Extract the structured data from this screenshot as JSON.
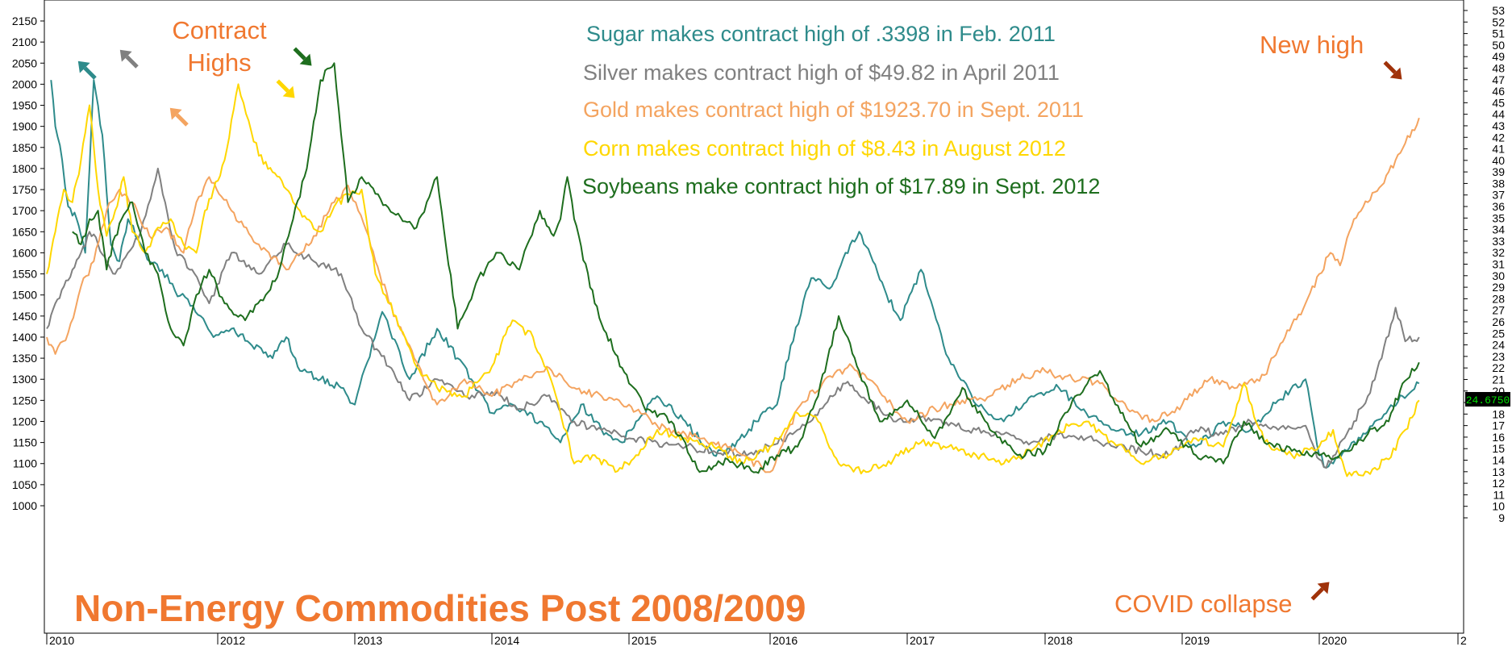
{
  "chart_data": {
    "type": "line",
    "title": "Non-Energy Commodities Post 2008/2009",
    "annotations": {
      "contract_highs_line1": "Contract",
      "contract_highs_line2": "Highs",
      "new_high": "New high",
      "covid": "COVID collapse",
      "sugar": "Sugar makes contract high of .3398 in Feb. 2011",
      "silver": "Silver makes contract high of $49.82 in April 2011",
      "gold": "Gold makes contract high of $1923.70 in Sept. 2011",
      "corn": "Corn makes contract high of $8.43 in August 2012",
      "soybeans": "Soybeans make contract high of $17.89 in Sept. 2012",
      "last_value": "24.6750"
    },
    "x_ticks": [
      "2010",
      "2012",
      "2013",
      "2014",
      "2015",
      "2016",
      "2017",
      "2018",
      "2019",
      "2020",
      "2"
    ],
    "left_axis": {
      "min": 950,
      "max": 2150,
      "ticks": [
        1000,
        1050,
        1100,
        1150,
        1200,
        1250,
        1300,
        1350,
        1400,
        1450,
        1500,
        1550,
        1600,
        1650,
        1700,
        1750,
        1800,
        1850,
        1900,
        1950,
        2000,
        2050,
        2100,
        2150
      ]
    },
    "right_axis": {
      "min": 8,
      "max": 53,
      "ticks": [
        9,
        10,
        11,
        12,
        13,
        14,
        15,
        16,
        17,
        18,
        19,
        20,
        21,
        22,
        23,
        24,
        25,
        26,
        27,
        28,
        29,
        30,
        31,
        32,
        33,
        34,
        35,
        36,
        37,
        38,
        39,
        40,
        41,
        42,
        43,
        44,
        45,
        46,
        47,
        48,
        49,
        50,
        51,
        52,
        53
      ]
    },
    "x_range": [
      2010.0,
      2020.9
    ],
    "grid": false,
    "series": [
      {
        "name": "Sugar",
        "color": "#2e8b8b",
        "x": [
          2010.05,
          2010.1,
          2010.18,
          2010.25,
          2010.35,
          2010.45,
          2010.55,
          2010.65,
          2010.75,
          2010.85,
          2010.95,
          2011.1,
          2011.2,
          2011.35,
          2011.5,
          2011.65,
          2011.8,
          2011.95,
          2012.1,
          2012.25,
          2012.4,
          2012.5,
          2012.6,
          2012.75,
          2012.9,
          2013.0,
          2013.2,
          2013.4,
          2013.6,
          2013.75,
          2013.85,
          2014.0,
          2014.15,
          2014.35,
          2014.5,
          2014.65,
          2014.8,
          2014.95,
          2015.05,
          2015.2,
          2015.4,
          2015.6,
          2015.75,
          2015.9,
          2016.05,
          2016.15,
          2016.3,
          2016.45,
          2016.55,
          2016.65,
          2016.75,
          2016.85,
          2016.95,
          2017.1,
          2017.3,
          2017.5,
          2017.7,
          2017.9,
          2018.1,
          2018.3,
          2018.5,
          2018.7,
          2018.9,
          2019.1,
          2019.3,
          2019.5,
          2019.7,
          2019.9,
          2020.0,
          2020.05,
          2020.1,
          2020.2,
          2020.3,
          2020.4,
          2020.5,
          2020.6,
          2020.72
        ],
        "y": [
          2010,
          1900,
          1820,
          1710,
          1680,
          1600,
          2010,
          1880,
          1620,
          1580,
          1680,
          1620,
          1580,
          1560,
          1510,
          1490,
          1450,
          1400,
          1420,
          1380,
          1350,
          1400,
          1320,
          1300,
          1280,
          1240,
          1460,
          1300,
          1420,
          1350,
          1300,
          1220,
          1240,
          1200,
          1150,
          1240,
          1180,
          1150,
          1200,
          1260,
          1200,
          1120,
          1140,
          1200,
          1240,
          1380,
          1540,
          1520,
          1600,
          1650,
          1580,
          1500,
          1440,
          1560,
          1350,
          1240,
          1200,
          1260,
          1280,
          1220,
          1180,
          1170,
          1200,
          1140,
          1200,
          1180,
          1250,
          1300,
          1120,
          1090,
          1100,
          1130,
          1160,
          1200,
          1230,
          1260,
          1290
        ]
      },
      {
        "name": "Silver",
        "color": "#808080",
        "x": [
          2010.0,
          2010.1,
          2010.2,
          2010.3,
          2010.4,
          2010.5,
          2010.6,
          2010.7,
          2010.8,
          2010.95,
          2011.1,
          2011.3,
          2011.5,
          2011.7,
          2011.9,
          2012.1,
          2012.3,
          2012.5,
          2012.7,
          2012.9,
          2013.05,
          2013.25,
          2013.4,
          2013.6,
          2013.8,
          2014.0,
          2014.2,
          2014.4,
          2014.6,
          2014.8,
          2015.0,
          2015.2,
          2015.4,
          2015.6,
          2015.8,
          2016.0,
          2016.2,
          2016.4,
          2016.55,
          2016.7,
          2016.9,
          2017.1,
          2017.3,
          2017.5,
          2017.7,
          2017.9,
          2018.1,
          2018.3,
          2018.5,
          2018.7,
          2018.9,
          2019.1,
          2019.3,
          2019.5,
          2019.7,
          2019.9,
          2020.0,
          2020.05,
          2020.15,
          2020.25,
          2020.35,
          2020.45,
          2020.55,
          2020.62,
          2020.72
        ],
        "y": [
          1420,
          1480,
          1520,
          1560,
          1600,
          1650,
          1620,
          1580,
          1550,
          1600,
          1650,
          1800,
          1610,
          1560,
          1480,
          1600,
          1550,
          1620,
          1580,
          1550,
          1420,
          1330,
          1250,
          1300,
          1260,
          1270,
          1230,
          1260,
          1200,
          1180,
          1160,
          1150,
          1140,
          1130,
          1120,
          1140,
          1180,
          1240,
          1290,
          1250,
          1200,
          1210,
          1190,
          1180,
          1170,
          1150,
          1170,
          1160,
          1140,
          1130,
          1120,
          1180,
          1170,
          1200,
          1180,
          1190,
          1110,
          1090,
          1150,
          1200,
          1260,
          1350,
          1470,
          1390,
          1400
        ]
      },
      {
        "name": "Gold",
        "color": "#f4a460",
        "x": [
          2010.0,
          2010.1,
          2010.25,
          2010.4,
          2010.55,
          2010.7,
          2010.85,
          2011.0,
          2011.2,
          2011.4,
          2011.6,
          2011.75,
          2011.9,
          2012.1,
          2012.3,
          2012.5,
          2012.7,
          2012.85,
          2012.95,
          2013.1,
          2013.25,
          2013.4,
          2013.5,
          2013.6,
          2013.8,
          2014.0,
          2014.2,
          2014.4,
          2014.6,
          2014.8,
          2015.0,
          2015.2,
          2015.4,
          2015.6,
          2015.8,
          2016.0,
          2016.2,
          2016.4,
          2016.6,
          2016.8,
          2017.0,
          2017.2,
          2017.4,
          2017.6,
          2017.8,
          2018.0,
          2018.2,
          2018.4,
          2018.6,
          2018.8,
          2019.0,
          2019.2,
          2019.4,
          2019.6,
          2019.75,
          2019.9,
          2020.0,
          2020.08,
          2020.15,
          2020.25,
          2020.35,
          2020.45,
          2020.55,
          2020.62,
          2020.72
        ],
        "y": [
          1400,
          1360,
          1410,
          1520,
          1580,
          1700,
          1750,
          1720,
          1640,
          1660,
          1600,
          1720,
          1780,
          1700,
          1620,
          1560,
          1640,
          1720,
          1760,
          1640,
          1480,
          1380,
          1300,
          1240,
          1300,
          1260,
          1300,
          1330,
          1280,
          1260,
          1240,
          1190,
          1170,
          1150,
          1120,
          1080,
          1230,
          1300,
          1330,
          1270,
          1200,
          1230,
          1250,
          1260,
          1300,
          1320,
          1300,
          1290,
          1230,
          1200,
          1240,
          1300,
          1280,
          1310,
          1400,
          1480,
          1550,
          1600,
          1570,
          1680,
          1720,
          1760,
          1820,
          1860,
          1920
        ]
      },
      {
        "name": "Corn",
        "color": "#ffd700",
        "x": [
          2010.0,
          2010.1,
          2010.2,
          2010.3,
          2010.4,
          2010.5,
          2010.6,
          2010.7,
          2010.8,
          2010.9,
          2011.0,
          2011.15,
          2011.3,
          2011.45,
          2011.6,
          2011.75,
          2011.85,
          2011.95,
          2012.05,
          2012.15,
          2012.3,
          2012.45,
          2012.55,
          2012.65,
          2012.75,
          2012.85,
          2012.95,
          2013.05,
          2013.15,
          2013.3,
          2013.45,
          2013.6,
          2013.8,
          2014.0,
          2014.15,
          2014.3,
          2014.45,
          2014.6,
          2014.75,
          2014.9,
          2015.05,
          2015.2,
          2015.4,
          2015.6,
          2015.8,
          2016.0,
          2016.2,
          2016.35,
          2016.5,
          2016.7,
          2016.9,
          2017.1,
          2017.3,
          2017.5,
          2017.7,
          2017.9,
          2018.1,
          2018.3,
          2018.5,
          2018.7,
          2018.9,
          2019.1,
          2019.3,
          2019.45,
          2019.6,
          2019.8,
          2020.0,
          2020.1,
          2020.2,
          2020.35,
          2020.5,
          2020.62,
          2020.72
        ],
        "y": [
          1550,
          1650,
          1750,
          1720,
          1820,
          1950,
          1750,
          1640,
          1700,
          1780,
          1650,
          1600,
          1660,
          1680,
          1620,
          1600,
          1700,
          1750,
          1820,
          2000,
          1830,
          1780,
          1720,
          1680,
          1650,
          1710,
          1740,
          1750,
          1550,
          1450,
          1330,
          1280,
          1260,
          1330,
          1440,
          1400,
          1280,
          1100,
          1120,
          1080,
          1120,
          1180,
          1160,
          1140,
          1100,
          1140,
          1220,
          1200,
          1100,
          1080,
          1110,
          1150,
          1140,
          1120,
          1100,
          1130,
          1180,
          1200,
          1150,
          1100,
          1120,
          1160,
          1140,
          1290,
          1150,
          1120,
          1140,
          1180,
          1070,
          1080,
          1110,
          1180,
          1250
        ]
      },
      {
        "name": "Soybeans",
        "color": "#1e6e1e",
        "x": [
          2010.3,
          2010.4,
          2010.5,
          2010.6,
          2010.7,
          2010.8,
          2010.9,
          2011.0,
          2011.15,
          2011.3,
          2011.45,
          2011.6,
          2011.75,
          2011.9,
          2012.05,
          2012.2,
          2012.35,
          2012.45,
          2012.55,
          2012.65,
          2012.75,
          2012.85,
          2012.95,
          2013.05,
          2013.15,
          2013.3,
          2013.45,
          2013.6,
          2013.75,
          2013.9,
          2014.05,
          2014.2,
          2014.35,
          2014.45,
          2014.5,
          2014.55,
          2014.6,
          2014.75,
          2014.9,
          2015.0,
          2015.1,
          2015.3,
          2015.5,
          2015.7,
          2015.9,
          2016.05,
          2016.2,
          2016.35,
          2016.5,
          2016.65,
          2016.8,
          2017.0,
          2017.2,
          2017.4,
          2017.6,
          2017.8,
          2018.0,
          2018.2,
          2018.4,
          2018.55,
          2018.7,
          2018.9,
          2019.1,
          2019.3,
          2019.45,
          2019.6,
          2019.8,
          2020.0,
          2020.1,
          2020.2,
          2020.35,
          2020.5,
          2020.6,
          2020.72
        ],
        "y": [
          1650,
          1620,
          1680,
          1700,
          1560,
          1640,
          1690,
          1720,
          1600,
          1550,
          1420,
          1380,
          1500,
          1560,
          1480,
          1440,
          1500,
          1560,
          1680,
          1800,
          2010,
          2050,
          1720,
          1780,
          1740,
          1690,
          1660,
          1780,
          1420,
          1540,
          1600,
          1560,
          1700,
          1640,
          1680,
          1780,
          1680,
          1480,
          1360,
          1290,
          1240,
          1200,
          1080,
          1110,
          1080,
          1120,
          1140,
          1260,
          1450,
          1320,
          1200,
          1250,
          1160,
          1280,
          1180,
          1120,
          1130,
          1250,
          1320,
          1220,
          1140,
          1180,
          1120,
          1100,
          1200,
          1150,
          1130,
          1120,
          1110,
          1130,
          1170,
          1200,
          1290,
          1340
        ]
      }
    ]
  }
}
